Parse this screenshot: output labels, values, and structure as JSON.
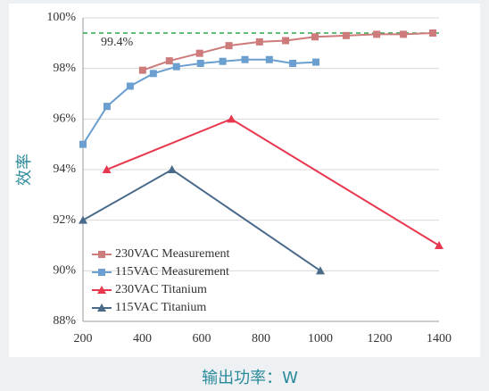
{
  "chart_data": {
    "type": "line",
    "xlabel": "输出功率：W",
    "ylabel": "效率",
    "xlim": [
      200,
      1400
    ],
    "xticks": [
      200,
      400,
      600,
      800,
      1000,
      1200,
      1400
    ],
    "ylim": [
      88,
      100
    ],
    "yticks": [
      {
        "value": 88,
        "label": "88%"
      },
      {
        "value": 90,
        "label": "90%"
      },
      {
        "value": 92,
        "label": "92%"
      },
      {
        "value": 94,
        "label": "94%"
      },
      {
        "value": 96,
        "label": "96%"
      },
      {
        "value": 98,
        "label": "98%"
      },
      {
        "value": 100,
        "label": "100%"
      }
    ],
    "grid": true,
    "reference_line": {
      "value": 99.4,
      "label": "99.4%",
      "color": "#2eaa4a"
    },
    "legend": "lower left",
    "series": [
      {
        "name": "230VAC Measurement",
        "color": "#cd7b7b",
        "marker": "square",
        "x": [
          401,
          491,
          593,
          692,
          795,
          883,
          982,
          1087,
          1190,
          1280,
          1379
        ],
        "values": [
          97.93,
          98.3,
          98.6,
          98.9,
          99.05,
          99.1,
          99.25,
          99.3,
          99.35,
          99.35,
          99.4
        ]
      },
      {
        "name": "115VAC Measurement",
        "color": "#6a9fd0",
        "marker": "square",
        "x": [
          200,
          281,
          359,
          437,
          515,
          596,
          671,
          746,
          828,
          907,
          985
        ],
        "values": [
          95.0,
          96.5,
          97.3,
          97.8,
          98.07,
          98.2,
          98.28,
          98.35,
          98.35,
          98.2,
          98.25
        ]
      },
      {
        "name": "230VAC Titanium",
        "color": "#e8384f",
        "marker": "triangle",
        "x": [
          280,
          700,
          1400
        ],
        "values": [
          94,
          96,
          91
        ]
      },
      {
        "name": "115VAC Titanium",
        "color": "#4a6a8a",
        "marker": "triangle",
        "x": [
          200,
          500,
          1000
        ],
        "values": [
          92,
          94,
          90
        ]
      }
    ]
  }
}
